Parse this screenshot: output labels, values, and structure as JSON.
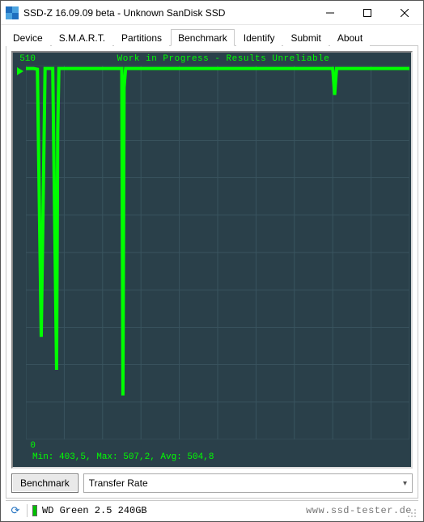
{
  "window": {
    "title": "SSD-Z 16.09.09 beta - Unknown SanDisk SSD"
  },
  "tabs": {
    "items": [
      "Device",
      "S.M.A.R.T.",
      "Partitions",
      "Benchmark",
      "Identify",
      "Submit",
      "About"
    ],
    "active_index": 3
  },
  "chart": {
    "type": "line",
    "title": "Work in Progress - Results Unreliable",
    "y_max_label": "510",
    "y_min_label": "0",
    "ylim": [
      0,
      510
    ],
    "xlim": [
      0,
      100
    ],
    "background_color": "#2a404a",
    "grid_color": "#3a5560",
    "line_color": "#00ff00",
    "text_color": "#00ff00",
    "font_family": "Courier New",
    "grid_rows": 10,
    "grid_cols": 10,
    "data_points": [
      [
        0,
        506
      ],
      [
        1,
        506
      ],
      [
        2,
        506
      ],
      [
        3,
        505
      ],
      [
        4,
        140
      ],
      [
        5,
        506
      ],
      [
        6,
        506
      ],
      [
        7,
        506
      ],
      [
        8,
        95
      ],
      [
        8.3,
        420
      ],
      [
        8.6,
        506
      ],
      [
        9,
        506
      ],
      [
        12,
        506
      ],
      [
        15,
        506
      ],
      [
        18,
        506
      ],
      [
        21,
        506
      ],
      [
        24,
        506
      ],
      [
        25,
        506
      ],
      [
        25.3,
        60
      ],
      [
        25.6,
        480
      ],
      [
        26,
        506
      ],
      [
        30,
        506
      ],
      [
        34,
        506
      ],
      [
        38,
        506
      ],
      [
        42,
        506
      ],
      [
        46,
        506
      ],
      [
        50,
        506
      ],
      [
        54,
        506
      ],
      [
        58,
        506
      ],
      [
        62,
        506
      ],
      [
        66,
        506
      ],
      [
        70,
        506
      ],
      [
        74,
        506
      ],
      [
        78,
        506
      ],
      [
        80,
        506
      ],
      [
        80.5,
        470
      ],
      [
        81,
        506
      ],
      [
        84,
        506
      ],
      [
        88,
        506
      ],
      [
        92,
        506
      ],
      [
        96,
        506
      ],
      [
        100,
        506
      ]
    ],
    "stats_text": "Min: 403,5, Max: 507,2, Avg: 504,8"
  },
  "controls": {
    "benchmark_button": "Benchmark",
    "dropdown_value": "Transfer Rate"
  },
  "statusbar": {
    "device_text": "WD Green 2.5 240GB",
    "watermark": "www.ssd-tester.de"
  }
}
